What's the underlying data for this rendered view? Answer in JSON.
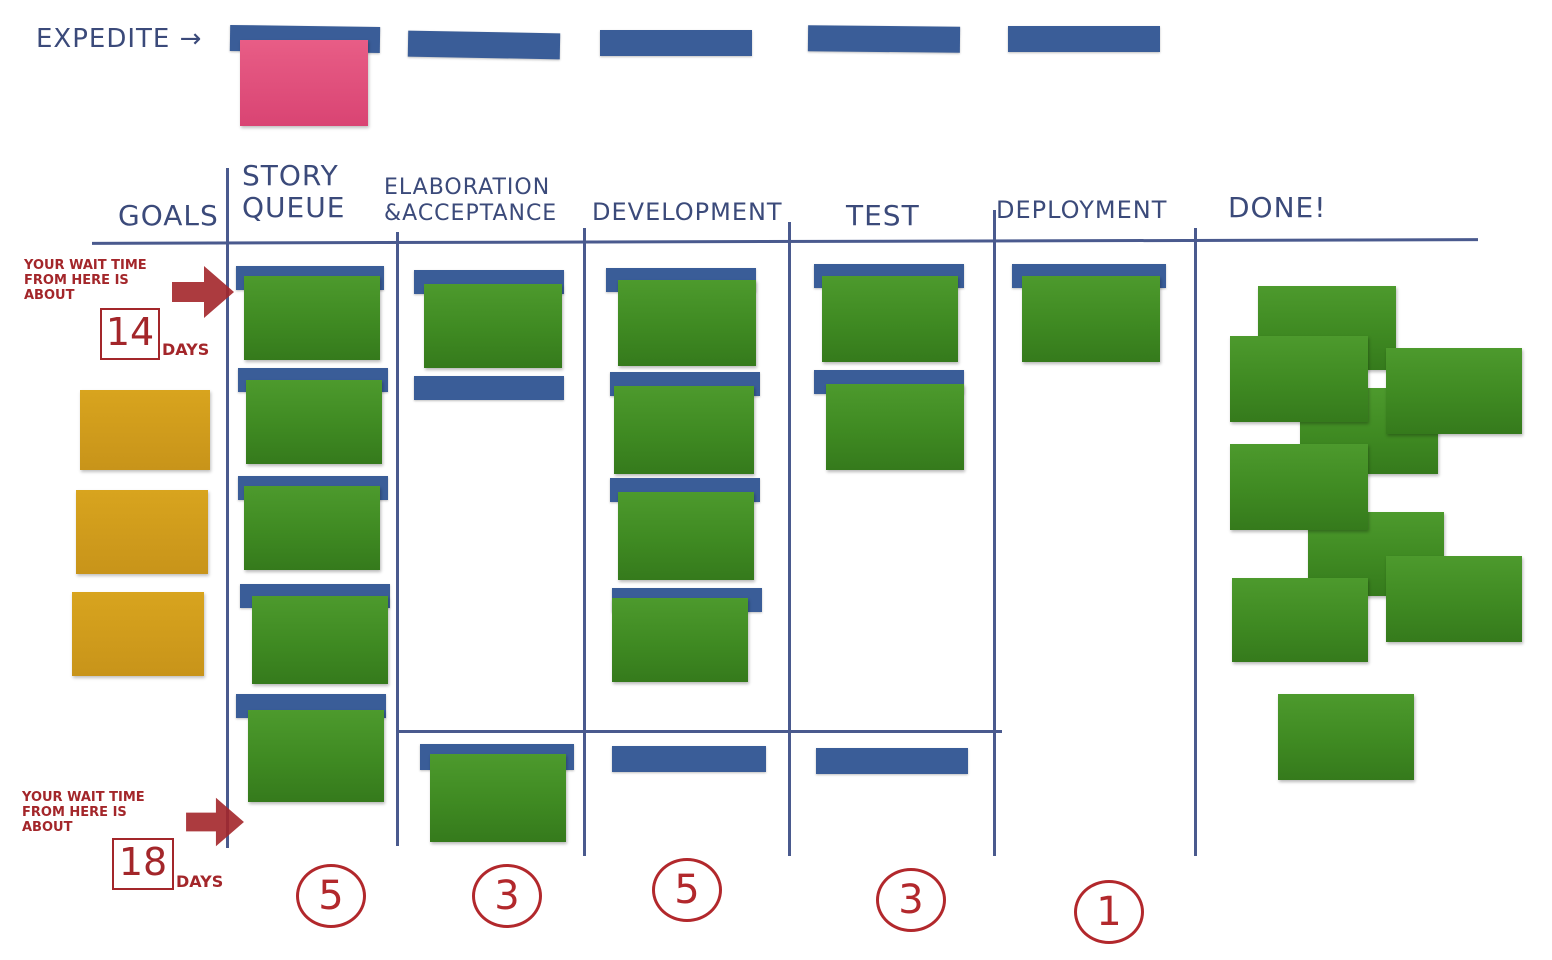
{
  "expedite": {
    "label": "EXPEDITE →"
  },
  "columns": [
    {
      "label": "GOALS"
    },
    {
      "label": "STORY QUEUE"
    },
    {
      "label": "ELABORATION &ACCEPTANCE"
    },
    {
      "label": "DEVELOPMENT"
    },
    {
      "label": "TEST"
    },
    {
      "label": "DEPLOYMENT"
    },
    {
      "label": "DONE!"
    }
  ],
  "wip_limits": [
    "5",
    "3",
    "5",
    "3",
    "1"
  ],
  "annotations": [
    {
      "text": "YOUR WAIT TIME FROM HERE IS ABOUT",
      "days": "14",
      "unit": "DAYS"
    },
    {
      "text": "YOUR WAIT TIME FROM HERE IS ABOUT",
      "days": "18",
      "unit": "DAYS"
    }
  ],
  "colors": {
    "ink": "#3b4a7a",
    "bar": "#3a5d98",
    "card_green": "#3f8a22",
    "card_yellow": "#c8941a",
    "card_pink": "#d94473",
    "annotation_red": "#a3262a"
  }
}
